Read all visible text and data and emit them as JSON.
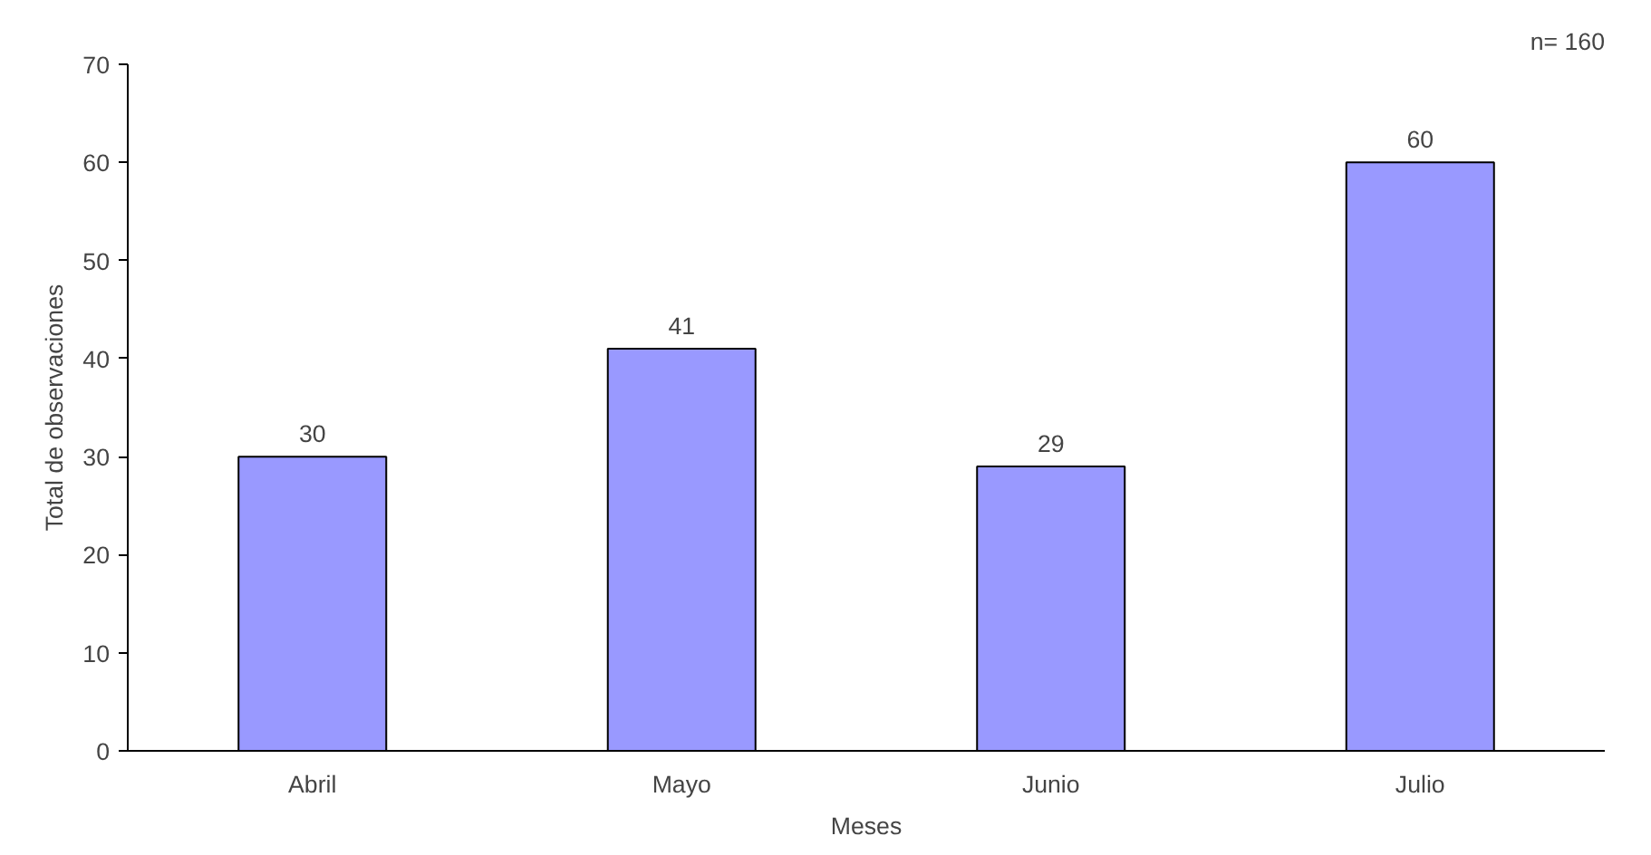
{
  "chart_data": {
    "type": "bar",
    "xlabel": "Meses",
    "ylabel": "Total de observaciones",
    "categories": [
      "Abril",
      "Mayo",
      "Junio",
      "Julio"
    ],
    "values": [
      30,
      41,
      29,
      60
    ],
    "color": "#9999ff",
    "ylim": [
      0,
      70
    ],
    "yticks": [
      0,
      10,
      20,
      30,
      40,
      50,
      60,
      70
    ],
    "data_labels": true,
    "grid": false,
    "annotations": [
      "n= 160"
    ]
  }
}
